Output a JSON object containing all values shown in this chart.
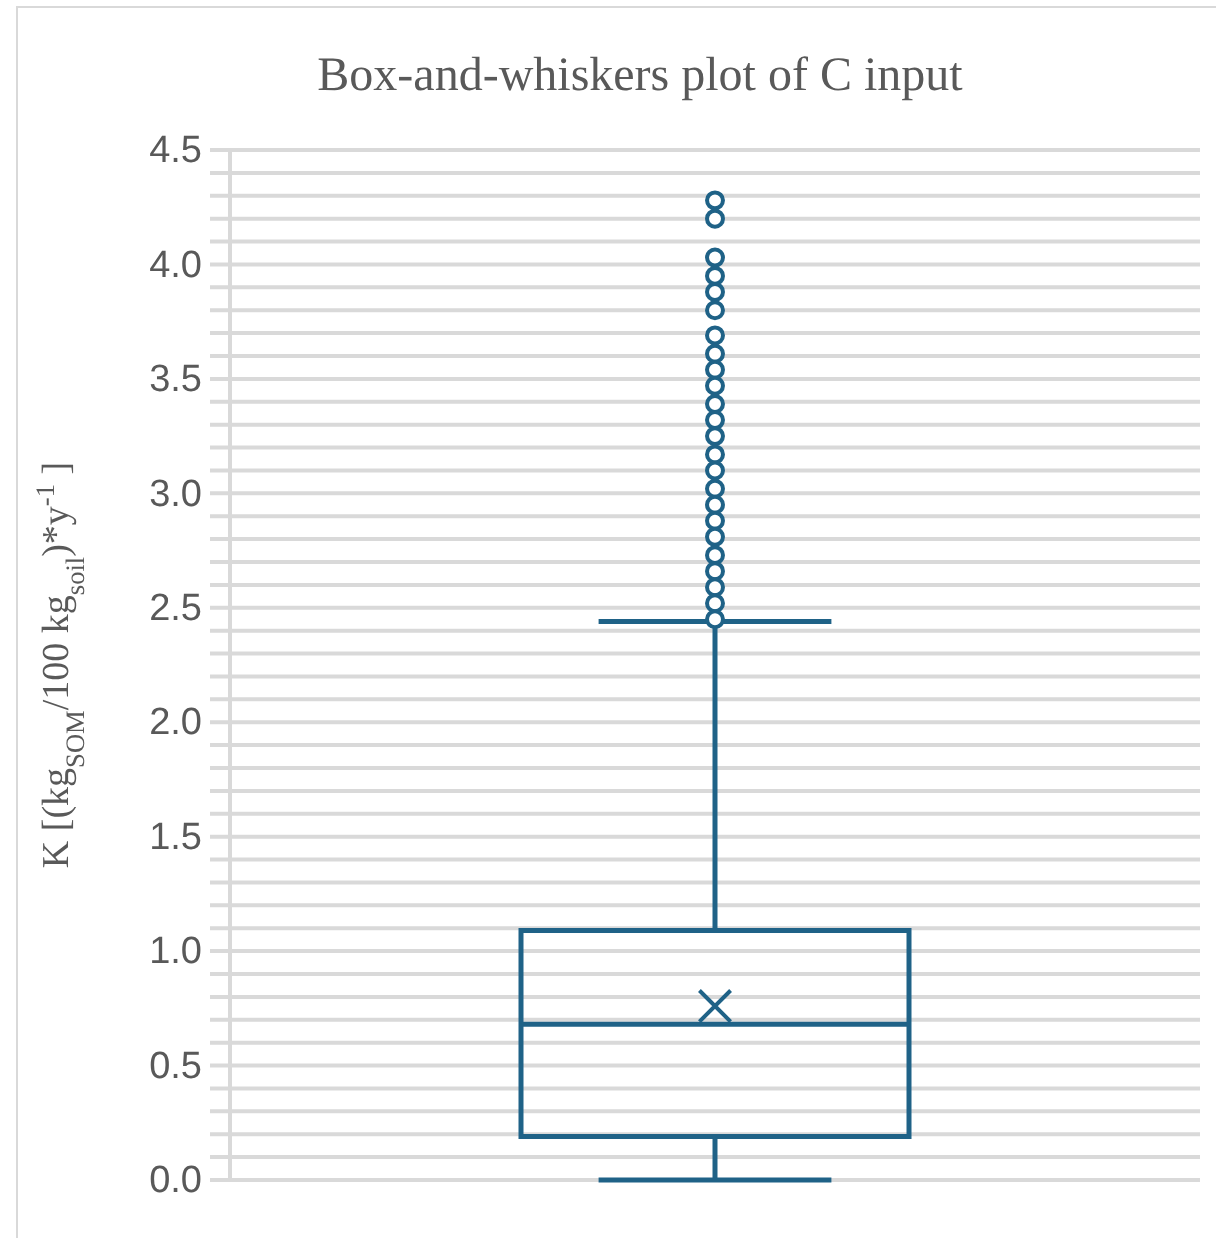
{
  "chart_data": {
    "type": "box",
    "title": "Box-and-whiskers plot of C input",
    "ylabel": "K [(kg$_{SOM}$/100 kg$_{soil}$)*y$^{-1}$ ]",
    "categories": [
      null
    ],
    "series": [
      {
        "color": "#1f6287",
        "boxes": [
          {
            "low": 0,
            "q1": 0.19,
            "median": 0.68,
            "q3": 1.09,
            "high": 2.44,
            "mean": 0.76,
            "outliers": [
              4.28,
              4.2,
              4.03,
              3.95,
              3.88,
              3.8,
              3.69,
              3.61,
              3.54,
              3.47,
              3.39,
              3.32,
              3.25,
              3.17,
              3.1,
              3.02,
              2.95,
              2.88,
              2.81,
              2.73,
              2.66,
              2.59,
              2.52,
              2.45
            ]
          }
        ]
      }
    ],
    "ylim": [
      0,
      4.5
    ],
    "yticks": [
      {
        "value": 0,
        "label": "0.0"
      },
      {
        "value": 0.1,
        "label": null
      },
      {
        "value": 0.2,
        "label": null
      },
      {
        "value": 0.3,
        "label": null
      },
      {
        "value": 0.4,
        "label": null
      },
      {
        "value": 0.5,
        "label": "0.5"
      },
      {
        "value": 0.6,
        "label": null
      },
      {
        "value": 0.7,
        "label": null
      },
      {
        "value": 0.8,
        "label": null
      },
      {
        "value": 0.9,
        "label": null
      },
      {
        "value": 1,
        "label": "1.0"
      },
      {
        "value": 1.1,
        "label": null
      },
      {
        "value": 1.2,
        "label": null
      },
      {
        "value": 1.3,
        "label": null
      },
      {
        "value": 1.4,
        "label": null
      },
      {
        "value": 1.5,
        "label": "1.5"
      },
      {
        "value": 1.6,
        "label": null
      },
      {
        "value": 1.7,
        "label": null
      },
      {
        "value": 1.8,
        "label": null
      },
      {
        "value": 1.9,
        "label": null
      },
      {
        "value": 2,
        "label": "2.0"
      },
      {
        "value": 2.1,
        "label": null
      },
      {
        "value": 2.2,
        "label": null
      },
      {
        "value": 2.3,
        "label": null
      },
      {
        "value": 2.4,
        "label": null
      },
      {
        "value": 2.5,
        "label": "2.5"
      },
      {
        "value": 2.6,
        "label": null
      },
      {
        "value": 2.7,
        "label": null
      },
      {
        "value": 2.8,
        "label": null
      },
      {
        "value": 2.9,
        "label": null
      },
      {
        "value": 3,
        "label": "3.0"
      },
      {
        "value": 3.1,
        "label": null
      },
      {
        "value": 3.2,
        "label": null
      },
      {
        "value": 3.3,
        "label": null
      },
      {
        "value": 3.4,
        "label": null
      },
      {
        "value": 3.5,
        "label": "3.5"
      },
      {
        "value": 3.6,
        "label": null
      },
      {
        "value": 3.7,
        "label": null
      },
      {
        "value": 3.8,
        "label": null
      },
      {
        "value": 3.9,
        "label": null
      },
      {
        "value": 4,
        "label": "4.0"
      },
      {
        "value": 4.1,
        "label": null
      },
      {
        "value": 4.2,
        "label": null
      },
      {
        "value": 4.3,
        "label": null
      },
      {
        "value": 4.4,
        "label": null
      },
      {
        "value": 4.5,
        "label": "4.5"
      }
    ],
    "grid": "y",
    "marker": "circle"
  }
}
